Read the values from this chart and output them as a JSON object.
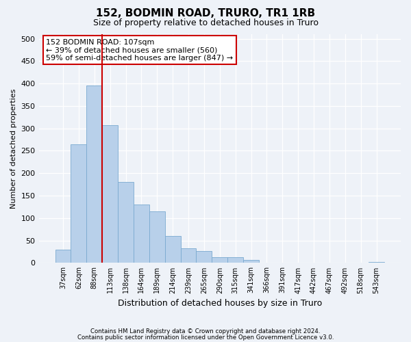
{
  "title1": "152, BODMIN ROAD, TRURO, TR1 1RB",
  "title2": "Size of property relative to detached houses in Truro",
  "xlabel": "Distribution of detached houses by size in Truro",
  "ylabel": "Number of detached properties",
  "bar_labels": [
    "37sqm",
    "62sqm",
    "88sqm",
    "113sqm",
    "138sqm",
    "164sqm",
    "189sqm",
    "214sqm",
    "239sqm",
    "265sqm",
    "290sqm",
    "315sqm",
    "341sqm",
    "366sqm",
    "391sqm",
    "417sqm",
    "442sqm",
    "467sqm",
    "492sqm",
    "518sqm",
    "543sqm"
  ],
  "bar_values": [
    30,
    265,
    395,
    307,
    181,
    130,
    115,
    60,
    32,
    26,
    13,
    13,
    6,
    1,
    1,
    0,
    0,
    0,
    0,
    0,
    2
  ],
  "bar_color": "#b8d0ea",
  "bar_edge_color": "#7aaad0",
  "vline_x": 2.5,
  "vline_color": "#cc0000",
  "annotation_text": "152 BODMIN ROAD: 107sqm\n← 39% of detached houses are smaller (560)\n59% of semi-detached houses are larger (847) →",
  "annotation_box_color": "#ffffff",
  "annotation_box_edge": "#cc0000",
  "ylim": [
    0,
    510
  ],
  "yticks": [
    0,
    50,
    100,
    150,
    200,
    250,
    300,
    350,
    400,
    450,
    500
  ],
  "footer1": "Contains HM Land Registry data © Crown copyright and database right 2024.",
  "footer2": "Contains public sector information licensed under the Open Government Licence v3.0.",
  "bg_color": "#eef2f8",
  "plot_bg_color": "#eef2f8",
  "title1_fontsize": 11,
  "title2_fontsize": 9
}
